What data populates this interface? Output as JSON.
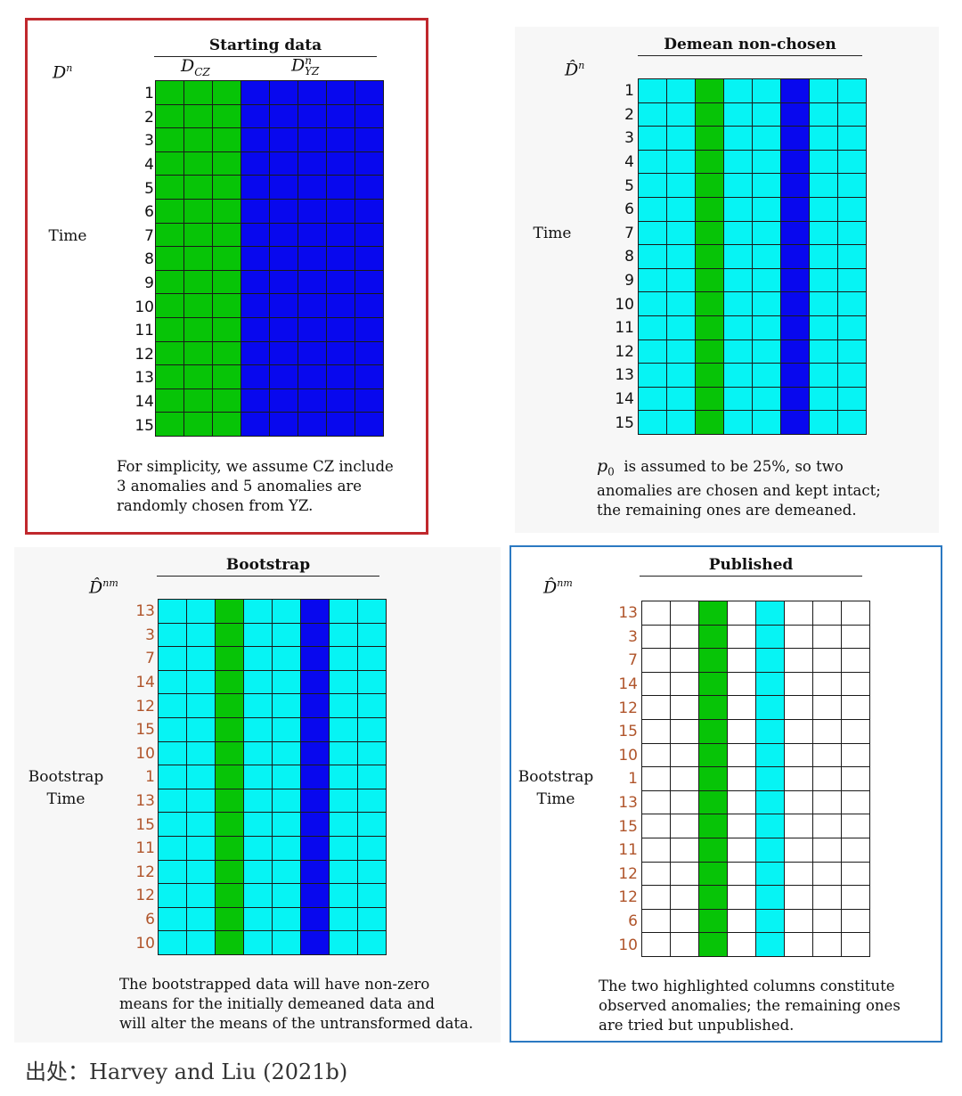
{
  "colors": {
    "green": "#07c407",
    "blue": "#0808ee",
    "cyan": "#06f4f4",
    "white": "#ffffff",
    "red_border": "#c0282d",
    "blue_border": "#2b79c2",
    "brown_label": "#b0552b"
  },
  "panels": [
    {
      "id": "starting",
      "title": "Starting data",
      "symbol": "D",
      "symbol_sup": "n",
      "side_label": [
        "Time"
      ],
      "sub_labels": {
        "cz": "D",
        "cz_sub": "CZ",
        "yz": "D",
        "yz_sup": "n",
        "yz_sub": "YZ"
      },
      "row_labels": [
        "1",
        "2",
        "3",
        "4",
        "5",
        "6",
        "7",
        "8",
        "9",
        "10",
        "11",
        "12",
        "13",
        "14",
        "15"
      ],
      "columns": [
        "green",
        "green",
        "green",
        "blue",
        "blue",
        "blue",
        "blue",
        "blue"
      ],
      "caption": [
        "For simplicity, we assume CZ include",
        "3 anomalies and 5 anomalies are",
        "randomly chosen from YZ."
      ]
    },
    {
      "id": "demean",
      "title": "Demean non-chosen",
      "symbol": "D̂",
      "symbol_sup": "n",
      "side_label": [
        "Time"
      ],
      "row_labels": [
        "1",
        "2",
        "3",
        "4",
        "5",
        "6",
        "7",
        "8",
        "9",
        "10",
        "11",
        "12",
        "13",
        "14",
        "15"
      ],
      "columns": [
        "cyan",
        "cyan",
        "green",
        "cyan",
        "cyan",
        "blue",
        "cyan",
        "cyan"
      ],
      "caption_symbol": "p",
      "caption_symbol_sub": "0",
      "caption": [
        "is assumed to be 25%, so two",
        "anomalies are chosen  and kept intact;",
        "the remaining ones are demeaned."
      ]
    },
    {
      "id": "bootstrap",
      "title": "Bootstrap",
      "symbol": "D̂",
      "symbol_sup": "nm",
      "side_label": [
        "Bootstrap",
        "Time"
      ],
      "row_labels": [
        "13",
        "3",
        "7",
        "14",
        "12",
        "15",
        "10",
        "1",
        "13",
        "15",
        "11",
        "12",
        "12",
        "6",
        "10"
      ],
      "columns": [
        "cyan",
        "cyan",
        "green",
        "cyan",
        "cyan",
        "blue",
        "cyan",
        "cyan"
      ],
      "caption": [
        "The bootstrapped data will have non-zero",
        "means for the initially demeaned data and",
        "will alter the means of the untransformed data."
      ]
    },
    {
      "id": "published",
      "title": "Published",
      "symbol": "D̂",
      "symbol_sup": "nm",
      "side_label": [
        "Bootstrap",
        "Time"
      ],
      "row_labels": [
        "13",
        "3",
        "7",
        "14",
        "12",
        "15",
        "10",
        "1",
        "13",
        "15",
        "11",
        "12",
        "12",
        "6",
        "10"
      ],
      "columns": [
        "white",
        "white",
        "green",
        "white",
        "cyan",
        "white",
        "white",
        "white"
      ],
      "caption": [
        "The two highlighted columns constitute",
        "observed anomalies; the remaining ones",
        "are tried but unpublished."
      ]
    }
  ],
  "source": "出处：Harvey and Liu (2021b)"
}
